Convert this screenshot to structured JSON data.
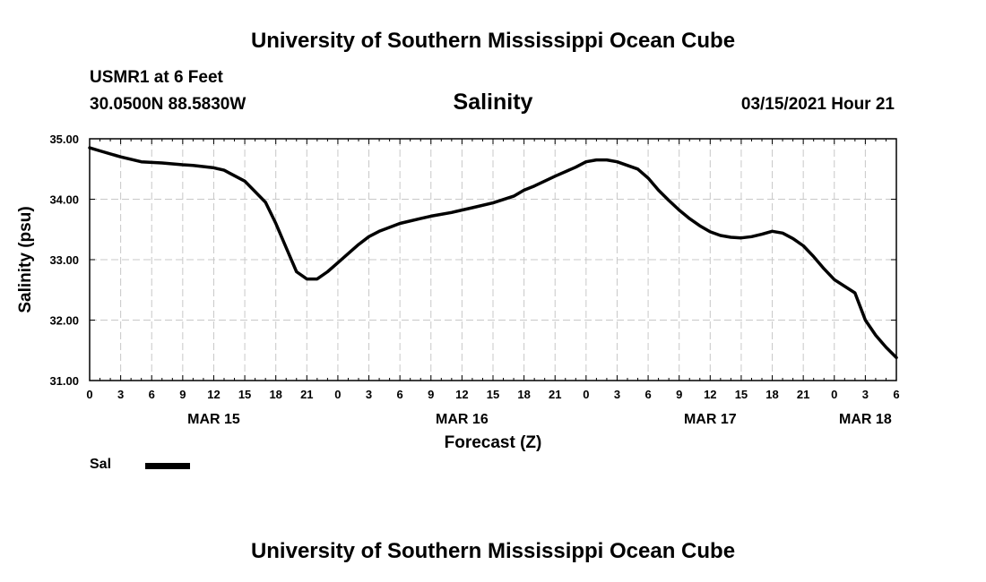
{
  "header": {
    "title": "University of Southern Mississippi Ocean Cube",
    "station": "USMR1 at 6 Feet",
    "coords": "30.0500N 88.5830W",
    "datetime": "03/15/2021 Hour 21"
  },
  "footer": {
    "title": "University of Southern Mississippi Ocean Cube"
  },
  "legend": {
    "label": "Sal"
  },
  "chart_data": {
    "type": "line",
    "title": "Salinity",
    "xlabel": "Forecast (Z)",
    "ylabel": "Salinity (psu)",
    "ylim": [
      31.0,
      35.0
    ],
    "yticks": [
      "31.00",
      "32.00",
      "33.00",
      "34.00",
      "35.00"
    ],
    "xlim": [
      0,
      78
    ],
    "xticks": [
      {
        "hour": 0,
        "label": "0"
      },
      {
        "hour": 3,
        "label": "3"
      },
      {
        "hour": 6,
        "label": "6"
      },
      {
        "hour": 9,
        "label": "9"
      },
      {
        "hour": 12,
        "label": "12"
      },
      {
        "hour": 15,
        "label": "15"
      },
      {
        "hour": 18,
        "label": "18"
      },
      {
        "hour": 21,
        "label": "21"
      },
      {
        "hour": 24,
        "label": "0"
      },
      {
        "hour": 27,
        "label": "3"
      },
      {
        "hour": 30,
        "label": "6"
      },
      {
        "hour": 33,
        "label": "9"
      },
      {
        "hour": 36,
        "label": "12"
      },
      {
        "hour": 39,
        "label": "15"
      },
      {
        "hour": 42,
        "label": "18"
      },
      {
        "hour": 45,
        "label": "21"
      },
      {
        "hour": 48,
        "label": "0"
      },
      {
        "hour": 51,
        "label": "3"
      },
      {
        "hour": 54,
        "label": "6"
      },
      {
        "hour": 57,
        "label": "9"
      },
      {
        "hour": 60,
        "label": "12"
      },
      {
        "hour": 63,
        "label": "15"
      },
      {
        "hour": 66,
        "label": "18"
      },
      {
        "hour": 69,
        "label": "21"
      },
      {
        "hour": 72,
        "label": "0"
      },
      {
        "hour": 75,
        "label": "3"
      },
      {
        "hour": 78,
        "label": "6"
      }
    ],
    "day_labels": [
      {
        "hour": 12,
        "label": "MAR 15"
      },
      {
        "hour": 36,
        "label": "MAR 16"
      },
      {
        "hour": 60,
        "label": "MAR 17"
      },
      {
        "hour": 75,
        "label": "MAR 18"
      }
    ],
    "grid": true,
    "series": [
      {
        "name": "Sal",
        "color": "#000000",
        "x": [
          0,
          1,
          3,
          5,
          7,
          9,
          10,
          12,
          13,
          15,
          17,
          18,
          19,
          20,
          21,
          22,
          23,
          24,
          25,
          26,
          27,
          28,
          30,
          32,
          33,
          35,
          37,
          39,
          41,
          42,
          43,
          45,
          47,
          48,
          49,
          50,
          51,
          53,
          54,
          55,
          56,
          57,
          58,
          59,
          60,
          61,
          62,
          63,
          64,
          65,
          66,
          67,
          68,
          69,
          70,
          71,
          72,
          74,
          75,
          76,
          77,
          78
        ],
        "y": [
          34.85,
          34.8,
          34.7,
          34.62,
          34.6,
          34.57,
          34.56,
          34.52,
          34.48,
          34.3,
          33.95,
          33.6,
          33.2,
          32.8,
          32.68,
          32.68,
          32.8,
          32.95,
          33.1,
          33.25,
          33.38,
          33.47,
          33.6,
          33.68,
          33.72,
          33.78,
          33.86,
          33.94,
          34.05,
          34.15,
          34.22,
          34.38,
          34.53,
          34.62,
          34.65,
          34.65,
          34.62,
          34.5,
          34.35,
          34.15,
          33.98,
          33.82,
          33.68,
          33.56,
          33.46,
          33.4,
          33.37,
          33.36,
          33.38,
          33.42,
          33.47,
          33.44,
          33.35,
          33.23,
          33.05,
          32.85,
          32.67,
          32.45,
          32.0,
          31.75,
          31.55,
          31.38
        ]
      }
    ]
  }
}
